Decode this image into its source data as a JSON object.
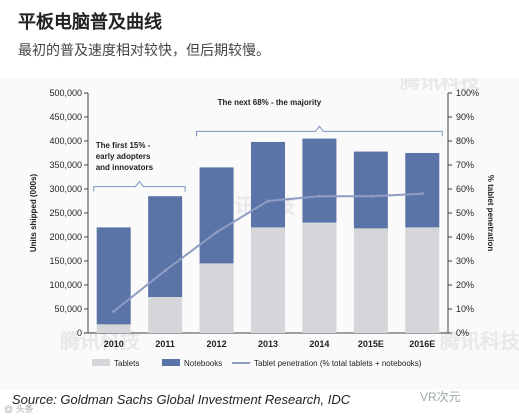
{
  "title": "平板电脑普及曲线",
  "subtitle": "最初的普及速度相对较快，但后期较慢。",
  "source": "Source: Goldman Sachs Global Investment Research, IDC",
  "watermarks": {
    "tencent": "腾讯科技",
    "bottom_left": "@ 头条",
    "bottom_right": "VR次元"
  },
  "colors": {
    "tablets": "#d4d6da",
    "notebooks": "#5a74a8",
    "penetration": "#8f9cc4",
    "bracket": "#7d93c4"
  },
  "chart_data": {
    "type": "bar",
    "stacked": true,
    "categories": [
      "2010",
      "2011",
      "2012",
      "2013",
      "2014",
      "2015E",
      "2016E"
    ],
    "series": [
      {
        "name": "Tablets",
        "values": [
          18000,
          75000,
          145000,
          220000,
          230000,
          218000,
          220000
        ]
      },
      {
        "name": "Notebooks",
        "values": [
          202000,
          210000,
          200000,
          178000,
          175000,
          160000,
          155000
        ]
      }
    ],
    "line_series": {
      "name": "Tablet penetration (% total tablets + notebooks)",
      "values": [
        9,
        26,
        42,
        55,
        57,
        57,
        58
      ],
      "axis": "right"
    },
    "ylabel": "Units shipped (000s)",
    "y2label": "% tablet penetration",
    "ylim": [
      0,
      500000
    ],
    "y2lim": [
      0,
      100
    ],
    "yticks": [
      "0",
      "50,000",
      "100,000",
      "150,000",
      "200,000",
      "250,000",
      "300,000",
      "350,000",
      "400,000",
      "450,000",
      "500,000"
    ],
    "y2ticks": [
      "0%",
      "10%",
      "20%",
      "30%",
      "40%",
      "50%",
      "60%",
      "70%",
      "80%",
      "90%",
      "100%"
    ],
    "annotations": [
      {
        "text_lines": [
          "The first 15% -",
          "early adopters",
          "and innovators"
        ]
      },
      {
        "text_lines": [
          "The next 68% - the majority"
        ]
      }
    ],
    "legend": [
      "Tablets",
      "Notebooks",
      "Tablet penetration (% total tablets + notebooks)"
    ],
    "legend_position": "bottom",
    "grid": false
  }
}
